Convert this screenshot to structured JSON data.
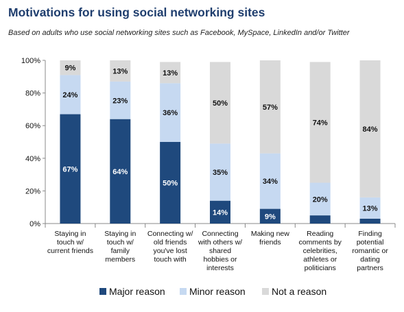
{
  "chart_data": {
    "type": "bar",
    "stacked": true,
    "title": "Motivations for using social networking sites",
    "subtitle": "Based on adults who use social networking sites such as Facebook, MySpace,  LinkedIn and/or Twitter",
    "categories": [
      [
        "Staying in",
        "touch w/",
        "current friends"
      ],
      [
        "Staying in",
        "touch w/",
        "family",
        "members"
      ],
      [
        "Connecting w/",
        "old friends",
        "you've lost",
        "touch with"
      ],
      [
        "Connecting",
        "with others w/",
        "shared",
        "hobbies or",
        "interests"
      ],
      [
        "Making new",
        "friends"
      ],
      [
        "Reading",
        "comments by",
        "celebrities,",
        "athletes or",
        "politicians"
      ],
      [
        "Finding",
        "potential",
        "romantic or",
        "dating",
        "partners"
      ]
    ],
    "series": [
      {
        "name": "Major reason",
        "color": "#1f497d",
        "label_color": "#ffffff",
        "values": [
          67,
          64,
          50,
          14,
          9,
          5,
          3
        ]
      },
      {
        "name": "Minor reason",
        "color": "#c6d9f1",
        "label_color": "#111111",
        "values": [
          24,
          23,
          36,
          35,
          34,
          20,
          13
        ]
      },
      {
        "name": "Not a reason",
        "color": "#d9d9d9",
        "label_color": "#111111",
        "values": [
          9,
          13,
          13,
          50,
          57,
          74,
          84
        ]
      }
    ],
    "data_labels": [
      [
        "67%",
        "64%",
        "50%",
        "14%",
        "9%",
        "5%",
        "3%"
      ],
      [
        "24%",
        "23%",
        "36%",
        "35%",
        "34%",
        "20%",
        "13%"
      ],
      [
        "9%",
        "13%",
        "13%",
        "50%",
        "57%",
        "74%",
        "84%"
      ]
    ],
    "ylim": [
      0,
      100
    ],
    "yticks": [
      0,
      20,
      40,
      60,
      80,
      100
    ],
    "ytick_labels": [
      "0%",
      "20%",
      "40%",
      "60%",
      "80%",
      "100%"
    ],
    "grid": false,
    "legend": "bottom"
  }
}
